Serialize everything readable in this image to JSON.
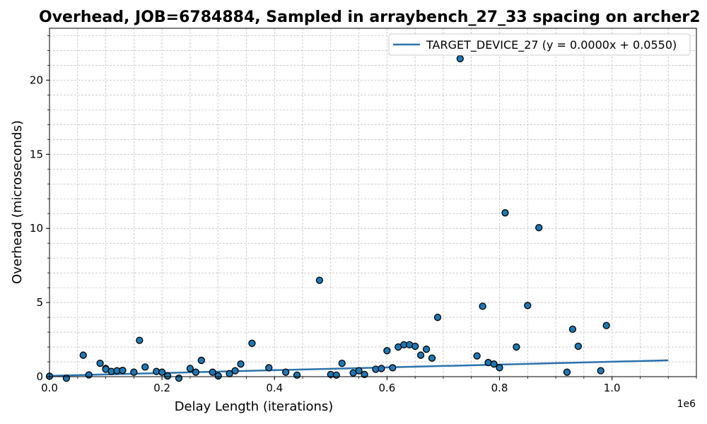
{
  "chart_data": {
    "type": "scatter",
    "title": "Overhead, JOB=6784884, Sampled in arraybench_27_33 spacing on archer2",
    "xlabel": "Delay Length (iterations)",
    "ylabel": "Overhead (microseconds)",
    "x_offset_label": "1e6",
    "x_scale": 1000000,
    "xlim": [
      0,
      1150000
    ],
    "ylim": [
      0,
      23.5
    ],
    "x_ticks": [
      0,
      200000,
      400000,
      600000,
      800000,
      1000000
    ],
    "x_tick_labels": [
      "0.0",
      "0.2",
      "0.4",
      "0.6",
      "0.8",
      "1.0"
    ],
    "y_ticks": [
      0,
      5,
      10,
      15,
      20
    ],
    "y_tick_labels": [
      "0",
      "5",
      "10",
      "15",
      "20"
    ],
    "grid": true,
    "legend_position": "top-right",
    "colors": {
      "points": "#1f77b4",
      "fit_line": "#2a73ac",
      "grid": "#b0b0b0"
    },
    "series": [
      {
        "kind": "points",
        "points": [
          [
            0,
            0.03
          ],
          [
            30000,
            -0.1
          ],
          [
            60000,
            1.45
          ],
          [
            70000,
            0.12
          ],
          [
            90000,
            0.9
          ],
          [
            100000,
            0.55
          ],
          [
            100000,
            0.5
          ],
          [
            110000,
            0.35
          ],
          [
            120000,
            0.4
          ],
          [
            130000,
            0.42
          ],
          [
            150000,
            0.3
          ],
          [
            160000,
            2.45
          ],
          [
            170000,
            0.65
          ],
          [
            190000,
            0.35
          ],
          [
            200000,
            0.3
          ],
          [
            210000,
            0.05
          ],
          [
            230000,
            -0.1
          ],
          [
            250000,
            0.55
          ],
          [
            260000,
            0.3
          ],
          [
            270000,
            1.1
          ],
          [
            290000,
            0.3
          ],
          [
            300000,
            0.05
          ],
          [
            320000,
            0.2
          ],
          [
            330000,
            0.4
          ],
          [
            340000,
            0.85
          ],
          [
            360000,
            2.25
          ],
          [
            390000,
            0.6
          ],
          [
            420000,
            0.3
          ],
          [
            440000,
            0.1
          ],
          [
            480000,
            6.5
          ],
          [
            500000,
            0.15
          ],
          [
            510000,
            0.1
          ],
          [
            520000,
            0.9
          ],
          [
            540000,
            0.25
          ],
          [
            550000,
            0.4
          ],
          [
            560000,
            0.15
          ],
          [
            580000,
            0.5
          ],
          [
            590000,
            0.55
          ],
          [
            600000,
            1.75
          ],
          [
            610000,
            0.6
          ],
          [
            620000,
            2.0
          ],
          [
            630000,
            2.15
          ],
          [
            640000,
            2.15
          ],
          [
            650000,
            2.05
          ],
          [
            660000,
            1.45
          ],
          [
            670000,
            1.85
          ],
          [
            680000,
            1.25
          ],
          [
            690000,
            4.0
          ],
          [
            730000,
            21.45
          ],
          [
            760000,
            1.4
          ],
          [
            770000,
            4.75
          ],
          [
            780000,
            0.95
          ],
          [
            790000,
            0.85
          ],
          [
            800000,
            0.6
          ],
          [
            810000,
            11.05
          ],
          [
            830000,
            2.0
          ],
          [
            850000,
            4.8
          ],
          [
            870000,
            10.05
          ],
          [
            920000,
            0.3
          ],
          [
            930000,
            3.2
          ],
          [
            940000,
            2.05
          ],
          [
            980000,
            0.4
          ],
          [
            990000,
            3.45
          ]
        ]
      },
      {
        "kind": "fit_line",
        "name": "TARGET_DEVICE_27 (y = 0.0000x + 0.0550)",
        "x": [
          0,
          1100000
        ],
        "y": [
          0.055,
          1.1
        ]
      }
    ]
  }
}
